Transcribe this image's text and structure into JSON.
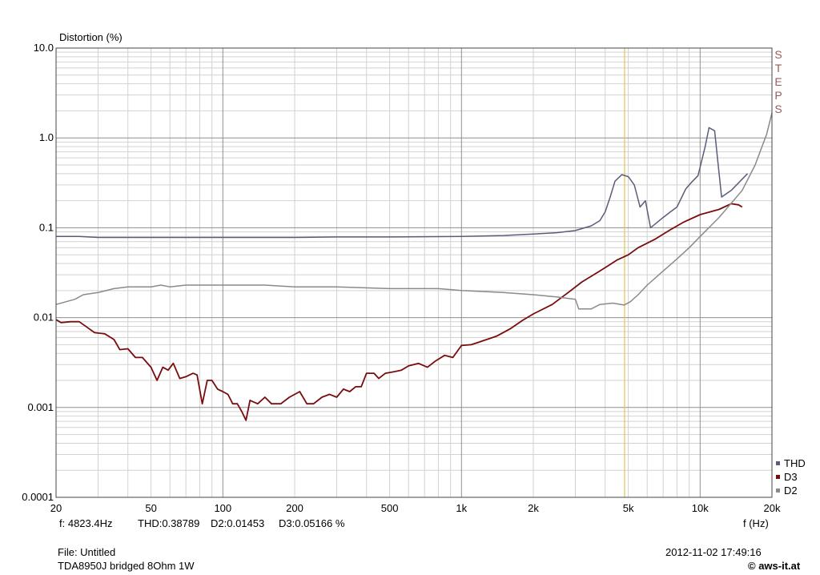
{
  "chart_data": {
    "type": "line",
    "ylabel": "Distortion (%)",
    "xlabel": "f (Hz)",
    "x_scale": "log",
    "y_scale": "log",
    "xlim": [
      20,
      20000
    ],
    "ylim": [
      0.0001,
      10
    ],
    "x_ticks": [
      {
        "value": 20,
        "label": "20"
      },
      {
        "value": 50,
        "label": "50"
      },
      {
        "value": 100,
        "label": "100"
      },
      {
        "value": 200,
        "label": "200"
      },
      {
        "value": 500,
        "label": "500"
      },
      {
        "value": 1000,
        "label": "1k"
      },
      {
        "value": 2000,
        "label": "2k"
      },
      {
        "value": 5000,
        "label": "5k"
      },
      {
        "value": 10000,
        "label": "10k"
      },
      {
        "value": 20000,
        "label": "20k"
      }
    ],
    "y_ticks": [
      {
        "value": 10,
        "label": "10.0"
      },
      {
        "value": 1,
        "label": "1.0"
      },
      {
        "value": 0.1,
        "label": "0.1"
      },
      {
        "value": 0.01,
        "label": "0.01"
      },
      {
        "value": 0.001,
        "label": "0.001"
      },
      {
        "value": 0.0001,
        "label": "0.0001"
      }
    ],
    "grid": true,
    "legend_position": "bottom-right",
    "cursor": {
      "x": 4823.4,
      "color": "#e6c34a"
    },
    "series": [
      {
        "name": "THD",
        "color": "#5a5d7a",
        "points": [
          [
            20,
            0.08
          ],
          [
            25,
            0.08
          ],
          [
            30,
            0.078
          ],
          [
            40,
            0.078
          ],
          [
            60,
            0.078
          ],
          [
            100,
            0.078
          ],
          [
            200,
            0.078
          ],
          [
            300,
            0.079
          ],
          [
            500,
            0.079
          ],
          [
            1000,
            0.08
          ],
          [
            1500,
            0.082
          ],
          [
            2000,
            0.085
          ],
          [
            2500,
            0.088
          ],
          [
            3000,
            0.093
          ],
          [
            3500,
            0.105
          ],
          [
            3800,
            0.12
          ],
          [
            4000,
            0.15
          ],
          [
            4200,
            0.22
          ],
          [
            4400,
            0.33
          ],
          [
            4700,
            0.39
          ],
          [
            5000,
            0.37
          ],
          [
            5300,
            0.3
          ],
          [
            5600,
            0.17
          ],
          [
            5900,
            0.2
          ],
          [
            6200,
            0.1
          ],
          [
            7000,
            0.13
          ],
          [
            7500,
            0.15
          ],
          [
            8000,
            0.17
          ],
          [
            8700,
            0.27
          ],
          [
            9200,
            0.32
          ],
          [
            9800,
            0.38
          ],
          [
            10500,
            0.8
          ],
          [
            10900,
            1.3
          ],
          [
            11500,
            1.2
          ],
          [
            12300,
            0.22
          ],
          [
            13500,
            0.26
          ],
          [
            15800,
            0.4
          ]
        ]
      },
      {
        "name": "D3",
        "color": "#7a0c0c",
        "points": [
          [
            20,
            0.0095
          ],
          [
            21,
            0.0088
          ],
          [
            23,
            0.009
          ],
          [
            25,
            0.009
          ],
          [
            27,
            0.0078
          ],
          [
            29,
            0.0068
          ],
          [
            32,
            0.0066
          ],
          [
            35,
            0.0057
          ],
          [
            37,
            0.0044
          ],
          [
            40,
            0.0045
          ],
          [
            43,
            0.0036
          ],
          [
            46,
            0.0036
          ],
          [
            50,
            0.0028
          ],
          [
            53,
            0.002
          ],
          [
            56,
            0.0028
          ],
          [
            59,
            0.0026
          ],
          [
            62,
            0.0031
          ],
          [
            66,
            0.0021
          ],
          [
            70,
            0.0022
          ],
          [
            75,
            0.0024
          ],
          [
            78,
            0.0023
          ],
          [
            82,
            0.0011
          ],
          [
            86,
            0.002
          ],
          [
            90,
            0.002
          ],
          [
            95,
            0.0016
          ],
          [
            100,
            0.0015
          ],
          [
            105,
            0.0014
          ],
          [
            110,
            0.0011
          ],
          [
            115,
            0.0011
          ],
          [
            120,
            0.0009
          ],
          [
            125,
            0.00072
          ],
          [
            130,
            0.0012
          ],
          [
            140,
            0.0011
          ],
          [
            150,
            0.0013
          ],
          [
            160,
            0.0011
          ],
          [
            175,
            0.0011
          ],
          [
            190,
            0.0013
          ],
          [
            210,
            0.0015
          ],
          [
            225,
            0.0011
          ],
          [
            240,
            0.0011
          ],
          [
            260,
            0.0013
          ],
          [
            280,
            0.0014
          ],
          [
            300,
            0.0013
          ],
          [
            320,
            0.0016
          ],
          [
            340,
            0.0015
          ],
          [
            360,
            0.0017
          ],
          [
            380,
            0.0017
          ],
          [
            400,
            0.0024
          ],
          [
            430,
            0.0024
          ],
          [
            450,
            0.0021
          ],
          [
            480,
            0.0024
          ],
          [
            520,
            0.0025
          ],
          [
            560,
            0.0026
          ],
          [
            600,
            0.0029
          ],
          [
            660,
            0.0031
          ],
          [
            720,
            0.0028
          ],
          [
            780,
            0.0033
          ],
          [
            850,
            0.0038
          ],
          [
            920,
            0.0036
          ],
          [
            1000,
            0.0049
          ],
          [
            1100,
            0.005
          ],
          [
            1200,
            0.0054
          ],
          [
            1400,
            0.0062
          ],
          [
            1600,
            0.0075
          ],
          [
            1800,
            0.0093
          ],
          [
            2000,
            0.011
          ],
          [
            2400,
            0.014
          ],
          [
            2800,
            0.019
          ],
          [
            3200,
            0.025
          ],
          [
            3800,
            0.033
          ],
          [
            4500,
            0.044
          ],
          [
            5000,
            0.05
          ],
          [
            5500,
            0.06
          ],
          [
            6500,
            0.075
          ],
          [
            7500,
            0.095
          ],
          [
            8500,
            0.115
          ],
          [
            10000,
            0.14
          ],
          [
            12000,
            0.16
          ],
          [
            13500,
            0.185
          ],
          [
            14500,
            0.18
          ],
          [
            15000,
            0.17
          ]
        ]
      },
      {
        "name": "D2",
        "color": "#8a8a8a",
        "points": [
          [
            20,
            0.014
          ],
          [
            22,
            0.015
          ],
          [
            24,
            0.016
          ],
          [
            26,
            0.018
          ],
          [
            30,
            0.019
          ],
          [
            35,
            0.021
          ],
          [
            40,
            0.022
          ],
          [
            50,
            0.022
          ],
          [
            55,
            0.023
          ],
          [
            60,
            0.022
          ],
          [
            70,
            0.023
          ],
          [
            80,
            0.023
          ],
          [
            100,
            0.023
          ],
          [
            150,
            0.023
          ],
          [
            200,
            0.022
          ],
          [
            300,
            0.022
          ],
          [
            500,
            0.021
          ],
          [
            800,
            0.021
          ],
          [
            1000,
            0.02
          ],
          [
            1500,
            0.019
          ],
          [
            2000,
            0.018
          ],
          [
            2500,
            0.017
          ],
          [
            3000,
            0.016
          ],
          [
            3100,
            0.0125
          ],
          [
            3500,
            0.0125
          ],
          [
            3800,
            0.014
          ],
          [
            4300,
            0.0145
          ],
          [
            4800,
            0.0138
          ],
          [
            5100,
            0.015
          ],
          [
            5500,
            0.018
          ],
          [
            6000,
            0.023
          ],
          [
            7000,
            0.033
          ],
          [
            8000,
            0.045
          ],
          [
            9000,
            0.06
          ],
          [
            10000,
            0.08
          ],
          [
            12000,
            0.13
          ],
          [
            15000,
            0.26
          ],
          [
            17000,
            0.5
          ],
          [
            19000,
            1.1
          ],
          [
            20000,
            1.9
          ]
        ]
      }
    ]
  },
  "cursor_readout": {
    "freq": "f: 4823.4Hz",
    "thd": "THD:0.38789",
    "d2": "D2:0.01453",
    "d3": "D3:0.05166 %"
  },
  "steps_label": "STEPS",
  "footer": {
    "file": "File: Untitled",
    "description": "TDA8950J bridged 8Ohm 1W",
    "timestamp": "2012-11-02 17:49:16",
    "brand": "© aws-it.at"
  }
}
